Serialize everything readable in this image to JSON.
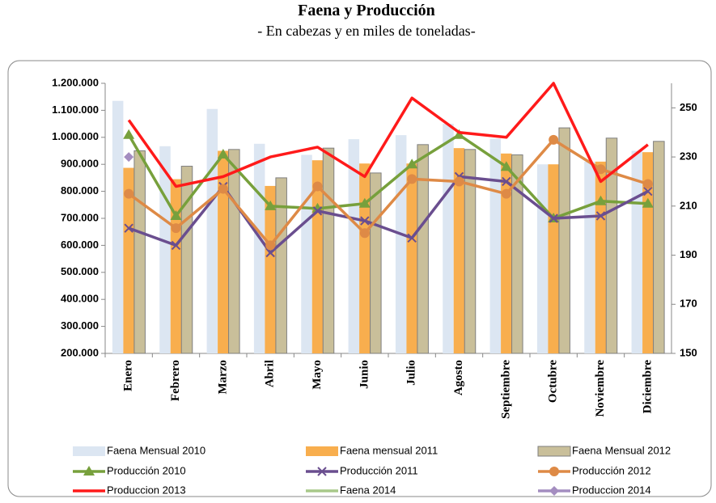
{
  "chart_data": {
    "type": "combo",
    "title": "Faena y Producción",
    "subtitle": "- En cabezas y en miles de toneladas-",
    "categories": [
      "Enero",
      "Febrero",
      "Marzo",
      "Abril",
      "Mayo",
      "Junio",
      "Julio",
      "Agosto",
      "Septiembre",
      "Octubre",
      "Noviembre",
      "Diciembre"
    ],
    "ylim": [
      200000,
      1200000
    ],
    "yticks": [
      {
        "value": 200000,
        "label": "200.000"
      },
      {
        "value": 300000,
        "label": "300.000"
      },
      {
        "value": 400000,
        "label": "400.000"
      },
      {
        "value": 500000,
        "label": "500.000"
      },
      {
        "value": 600000,
        "label": "600.000"
      },
      {
        "value": 700000,
        "label": "700.000"
      },
      {
        "value": 800000,
        "label": "800.000"
      },
      {
        "value": 900000,
        "label": "900.000"
      },
      {
        "value": 1000000,
        "label": "1.000.000"
      },
      {
        "value": 1100000,
        "label": "1.100.000"
      },
      {
        "value": 1200000,
        "label": "1.200.000"
      }
    ],
    "y2lim": [
      150,
      260
    ],
    "y2ticks": [
      150,
      170,
      190,
      210,
      230,
      250
    ],
    "series": [
      {
        "name": "Faena Mensual 2010",
        "type": "bar",
        "color": "#dce6f2",
        "values": [
          1135000,
          967000,
          1105000,
          976000,
          935000,
          993000,
          1008000,
          1050000,
          995000,
          900000,
          910000,
          950000
        ]
      },
      {
        "name": "Faena mensual 2011",
        "type": "bar",
        "color": "#f8ae4e",
        "values": [
          887000,
          845000,
          950000,
          820000,
          915000,
          903000,
          903000,
          960000,
          940000,
          900000,
          910000,
          945000
        ]
      },
      {
        "name": "Faena Mensual 2012",
        "type": "bar",
        "color": "#c9bf9a",
        "border": "#7f7f7f",
        "values": [
          950000,
          893000,
          955000,
          850000,
          960000,
          868000,
          973000,
          955000,
          935000,
          1035000,
          997000,
          985000
        ]
      },
      {
        "name": "Producción  2010",
        "type": "line",
        "marker": "triangle",
        "axis": "y2",
        "color": "#77a03c",
        "values": [
          239,
          206,
          231,
          210,
          209,
          211,
          227,
          239,
          226,
          205,
          212,
          211
        ]
      },
      {
        "name": "Producción  2011",
        "type": "line",
        "marker": "x",
        "axis": "y2",
        "color": "#6a4e8f",
        "values": [
          201,
          194,
          218,
          191,
          208,
          204,
          197,
          222,
          220,
          205,
          206,
          216
        ]
      },
      {
        "name": "Producción  2012",
        "type": "line",
        "marker": "circle",
        "axis": "y2",
        "color": "#de8a46",
        "values": [
          215,
          201,
          217,
          194,
          218,
          199,
          221,
          220,
          215,
          237,
          225,
          219
        ]
      },
      {
        "name": "Produccion  2013",
        "type": "line",
        "marker": "none",
        "axis": "y2",
        "color": "#ff1a1a",
        "values": [
          245,
          218,
          222,
          230,
          234,
          222,
          254,
          240,
          238,
          260,
          220,
          235
        ]
      },
      {
        "name": "Faena 2014",
        "type": "line",
        "marker": "none",
        "axis": "y2",
        "color": "#a9c98a",
        "values": [
          null,
          null,
          null,
          null,
          null,
          null,
          null,
          null,
          null,
          null,
          null,
          null
        ]
      },
      {
        "name": "Produccion  2014",
        "type": "line",
        "marker": "diamond",
        "axis": "y2",
        "color": "#a48dc0",
        "values": [
          230,
          null,
          null,
          null,
          null,
          null,
          null,
          null,
          null,
          null,
          null,
          null
        ]
      }
    ]
  }
}
